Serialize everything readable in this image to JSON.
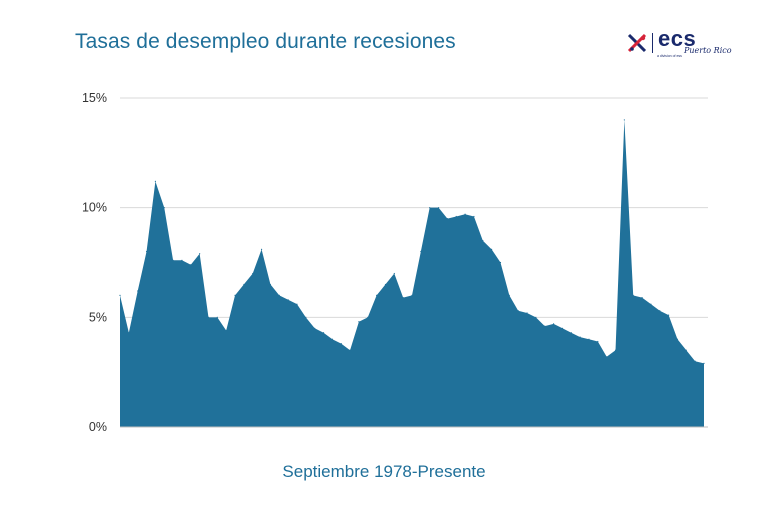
{
  "header": {
    "logo_text": "ecs",
    "logo_subtext": "a division of ess",
    "logo_script": "Puerto Rico"
  },
  "chart_data": {
    "type": "area",
    "title": "Tasas de desempleo durante recesiones",
    "xlabel": "Septiembre 1978-Presente",
    "ylabel": "",
    "ylim": [
      0,
      15
    ],
    "yticks": [
      0,
      5,
      10,
      15
    ],
    "ytick_labels": [
      "0%",
      "5%",
      "10%",
      "15%"
    ],
    "grid": true,
    "color": "#20719a",
    "values": [
      6.0,
      4.3,
      6.2,
      8.0,
      11.2,
      10.0,
      7.6,
      7.6,
      7.4,
      7.9,
      5.0,
      5.0,
      4.4,
      6.0,
      6.5,
      7.0,
      8.1,
      6.5,
      6.0,
      5.8,
      5.6,
      5.0,
      4.5,
      4.3,
      4.0,
      3.8,
      3.5,
      4.8,
      5.0,
      6.0,
      6.5,
      7.0,
      5.9,
      6.0,
      8.0,
      10.0,
      10.0,
      9.5,
      9.6,
      9.7,
      9.6,
      8.5,
      8.1,
      7.5,
      6.0,
      5.3,
      5.2,
      5.0,
      4.6,
      4.7,
      4.5,
      4.3,
      4.1,
      4.0,
      3.9,
      3.2,
      3.5,
      14.0,
      6.0,
      5.9,
      5.6,
      5.3,
      5.1,
      4.0,
      3.5,
      3.0,
      2.9
    ]
  }
}
